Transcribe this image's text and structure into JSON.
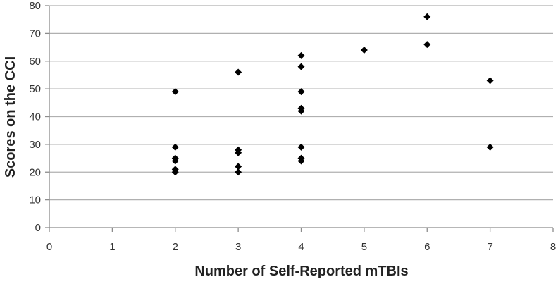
{
  "chart_data": {
    "type": "scatter",
    "title": "",
    "xlabel": "Number of Self-Reported mTBIs",
    "ylabel": "Scores on the CCI",
    "xlim": [
      0,
      8
    ],
    "ylim": [
      0,
      80
    ],
    "xticks": [
      0,
      1,
      2,
      3,
      4,
      5,
      6,
      7,
      8
    ],
    "yticks": [
      0,
      10,
      20,
      30,
      40,
      50,
      60,
      70,
      80
    ],
    "grid": "horizontal",
    "legend": "none",
    "marker": "diamond",
    "marker_color": "#000000",
    "points": [
      {
        "x": 2,
        "y": 49
      },
      {
        "x": 2,
        "y": 29
      },
      {
        "x": 2,
        "y": 25
      },
      {
        "x": 2,
        "y": 24
      },
      {
        "x": 2,
        "y": 21
      },
      {
        "x": 2,
        "y": 20
      },
      {
        "x": 3,
        "y": 56
      },
      {
        "x": 3,
        "y": 28
      },
      {
        "x": 3,
        "y": 27
      },
      {
        "x": 3,
        "y": 22
      },
      {
        "x": 3,
        "y": 20
      },
      {
        "x": 4,
        "y": 62
      },
      {
        "x": 4,
        "y": 58
      },
      {
        "x": 4,
        "y": 49
      },
      {
        "x": 4,
        "y": 43
      },
      {
        "x": 4,
        "y": 42
      },
      {
        "x": 4,
        "y": 29
      },
      {
        "x": 4,
        "y": 25
      },
      {
        "x": 4,
        "y": 24
      },
      {
        "x": 5,
        "y": 64
      },
      {
        "x": 6,
        "y": 76
      },
      {
        "x": 6,
        "y": 66
      },
      {
        "x": 7,
        "y": 53
      },
      {
        "x": 7,
        "y": 29
      }
    ]
  }
}
